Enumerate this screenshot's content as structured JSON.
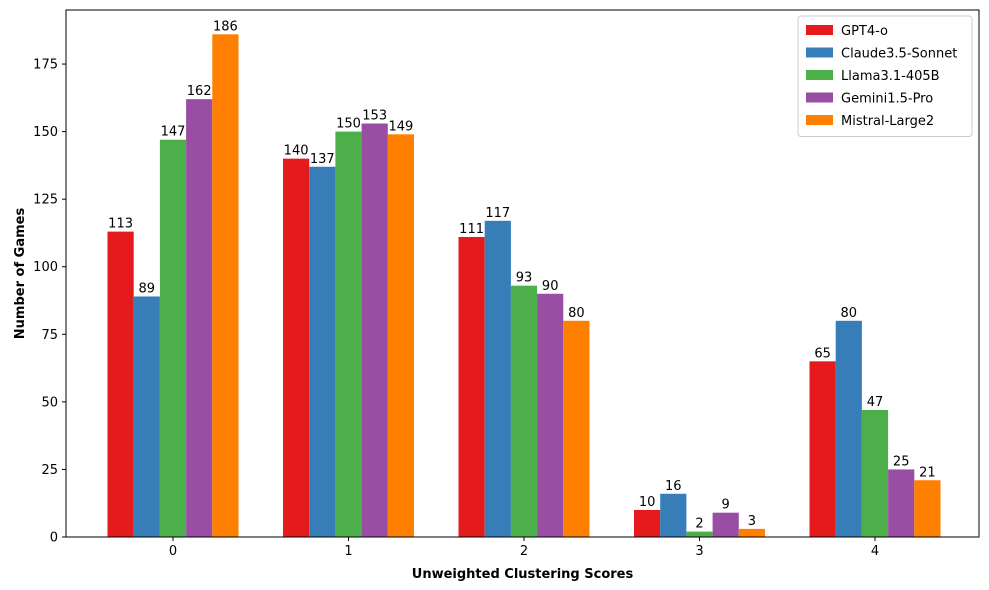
{
  "chart_data": {
    "type": "bar",
    "title": "",
    "xlabel": "Unweighted Clustering Scores",
    "ylabel": "Number of Games",
    "categories": [
      "0",
      "1",
      "2",
      "3",
      "4"
    ],
    "ylim": [
      0,
      195
    ],
    "yticks": [
      0,
      25,
      50,
      75,
      100,
      125,
      150,
      175
    ],
    "grid": false,
    "legend_position": "top-right",
    "series": [
      {
        "name": "GPT4-o",
        "color": "#e41a1c",
        "values": [
          113,
          140,
          111,
          10,
          65
        ]
      },
      {
        "name": "Claude3.5-Sonnet",
        "color": "#377eb8",
        "values": [
          89,
          137,
          117,
          16,
          80
        ]
      },
      {
        "name": "Llama3.1-405B",
        "color": "#4daf4a",
        "values": [
          147,
          150,
          93,
          2,
          47
        ]
      },
      {
        "name": "Gemini1.5-Pro",
        "color": "#984ea3",
        "values": [
          162,
          153,
          90,
          9,
          25
        ]
      },
      {
        "name": "Mistral-Large2",
        "color": "#ff7f00",
        "values": [
          186,
          149,
          80,
          3,
          21
        ]
      }
    ]
  }
}
